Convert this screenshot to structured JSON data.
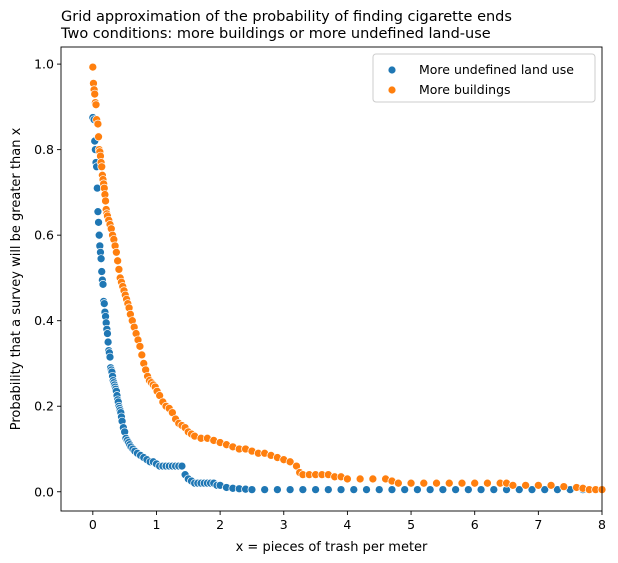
{
  "chart_data": {
    "type": "scatter",
    "title": "Grid approximation of the probability of finding cigarette ends",
    "subtitle": "Two conditions: more buildings or more undefined  land-use",
    "xlabel": "x = pieces of trash per meter",
    "ylabel": "Probability that a survey will be greater than x",
    "xlim": [
      -0.5,
      8
    ],
    "ylim": [
      -0.045,
      1.04
    ],
    "xticks": [
      0,
      1,
      2,
      3,
      4,
      5,
      6,
      7,
      8
    ],
    "yticks": [
      0.0,
      0.2,
      0.4,
      0.6,
      0.8,
      1.0
    ],
    "xtick_labels": [
      "0",
      "1",
      "2",
      "3",
      "4",
      "5",
      "6",
      "7",
      "8"
    ],
    "ytick_labels": [
      "0.0",
      "0.2",
      "0.4",
      "0.6",
      "0.8",
      "1.0"
    ],
    "grid": false,
    "legend_position": "top-right",
    "series": [
      {
        "name": "More undefined land use",
        "color": "#1f77b4",
        "x": [
          0.0,
          0.02,
          0.03,
          0.04,
          0.05,
          0.06,
          0.07,
          0.08,
          0.09,
          0.1,
          0.11,
          0.12,
          0.13,
          0.14,
          0.15,
          0.16,
          0.17,
          0.18,
          0.19,
          0.2,
          0.21,
          0.22,
          0.23,
          0.24,
          0.25,
          0.26,
          0.27,
          0.28,
          0.29,
          0.3,
          0.31,
          0.32,
          0.33,
          0.34,
          0.35,
          0.36,
          0.37,
          0.38,
          0.39,
          0.4,
          0.41,
          0.42,
          0.43,
          0.44,
          0.45,
          0.46,
          0.48,
          0.5,
          0.52,
          0.54,
          0.56,
          0.58,
          0.6,
          0.63,
          0.66,
          0.7,
          0.75,
          0.8,
          0.85,
          0.9,
          0.95,
          1.0,
          1.05,
          1.1,
          1.15,
          1.2,
          1.25,
          1.3,
          1.35,
          1.4,
          1.45,
          1.5,
          1.55,
          1.6,
          1.65,
          1.7,
          1.75,
          1.8,
          1.85,
          1.9,
          1.95,
          2.0,
          2.1,
          2.2,
          2.3,
          2.4,
          2.5,
          2.7,
          2.9,
          3.1,
          3.3,
          3.5,
          3.7,
          3.9,
          4.1,
          4.3,
          4.5,
          4.7,
          4.9,
          5.1,
          5.3,
          5.5,
          5.7,
          5.9,
          6.1,
          6.3,
          6.5,
          6.7,
          6.9,
          7.1,
          7.3,
          7.5,
          7.7
        ],
        "y": [
          0.875,
          0.87,
          0.82,
          0.8,
          0.77,
          0.76,
          0.71,
          0.655,
          0.63,
          0.6,
          0.575,
          0.56,
          0.545,
          0.515,
          0.495,
          0.485,
          0.445,
          0.44,
          0.42,
          0.41,
          0.395,
          0.38,
          0.37,
          0.35,
          0.33,
          0.325,
          0.315,
          0.29,
          0.285,
          0.28,
          0.27,
          0.26,
          0.255,
          0.25,
          0.245,
          0.24,
          0.235,
          0.225,
          0.215,
          0.21,
          0.2,
          0.195,
          0.19,
          0.185,
          0.175,
          0.165,
          0.15,
          0.14,
          0.125,
          0.12,
          0.115,
          0.11,
          0.105,
          0.1,
          0.095,
          0.09,
          0.085,
          0.08,
          0.075,
          0.07,
          0.07,
          0.065,
          0.06,
          0.06,
          0.06,
          0.06,
          0.06,
          0.06,
          0.06,
          0.06,
          0.04,
          0.03,
          0.025,
          0.02,
          0.02,
          0.02,
          0.02,
          0.02,
          0.02,
          0.02,
          0.015,
          0.015,
          0.01,
          0.008,
          0.007,
          0.006,
          0.005,
          0.005,
          0.005,
          0.005,
          0.005,
          0.005,
          0.005,
          0.005,
          0.005,
          0.005,
          0.005,
          0.005,
          0.005,
          0.005,
          0.005,
          0.005,
          0.005,
          0.005,
          0.005,
          0.005,
          0.005,
          0.005,
          0.005,
          0.005,
          0.005,
          0.005,
          0.005
        ]
      },
      {
        "name": "More buildings",
        "color": "#ff7f0e",
        "x": [
          0.0,
          0.01,
          0.02,
          0.03,
          0.04,
          0.05,
          0.06,
          0.08,
          0.09,
          0.1,
          0.11,
          0.12,
          0.13,
          0.14,
          0.15,
          0.16,
          0.17,
          0.18,
          0.19,
          0.2,
          0.21,
          0.22,
          0.23,
          0.25,
          0.27,
          0.29,
          0.31,
          0.33,
          0.35,
          0.37,
          0.39,
          0.41,
          0.43,
          0.45,
          0.47,
          0.49,
          0.51,
          0.53,
          0.55,
          0.57,
          0.59,
          0.62,
          0.65,
          0.68,
          0.71,
          0.74,
          0.77,
          0.8,
          0.83,
          0.86,
          0.89,
          0.92,
          0.95,
          0.98,
          1.01,
          1.05,
          1.1,
          1.15,
          1.2,
          1.25,
          1.3,
          1.35,
          1.4,
          1.45,
          1.5,
          1.55,
          1.6,
          1.7,
          1.8,
          1.9,
          2.0,
          2.1,
          2.2,
          2.3,
          2.4,
          2.5,
          2.6,
          2.7,
          2.8,
          2.9,
          3.0,
          3.1,
          3.2,
          3.25,
          3.3,
          3.4,
          3.5,
          3.6,
          3.7,
          3.8,
          3.9,
          4.0,
          4.2,
          4.4,
          4.6,
          4.7,
          4.8,
          5.0,
          5.2,
          5.4,
          5.6,
          5.8,
          6.0,
          6.2,
          6.4,
          6.5,
          6.6,
          6.8,
          7.0,
          7.2,
          7.4,
          7.6,
          7.7,
          7.8,
          7.9,
          8.0
        ],
        "y": [
          0.993,
          0.955,
          0.94,
          0.93,
          0.91,
          0.905,
          0.87,
          0.86,
          0.83,
          0.8,
          0.795,
          0.785,
          0.77,
          0.76,
          0.74,
          0.73,
          0.72,
          0.71,
          0.695,
          0.68,
          0.66,
          0.65,
          0.645,
          0.635,
          0.625,
          0.615,
          0.6,
          0.59,
          0.575,
          0.56,
          0.54,
          0.52,
          0.5,
          0.49,
          0.48,
          0.47,
          0.46,
          0.45,
          0.44,
          0.43,
          0.415,
          0.4,
          0.385,
          0.37,
          0.355,
          0.34,
          0.32,
          0.3,
          0.285,
          0.27,
          0.26,
          0.255,
          0.25,
          0.245,
          0.235,
          0.225,
          0.21,
          0.2,
          0.195,
          0.185,
          0.17,
          0.16,
          0.155,
          0.15,
          0.14,
          0.135,
          0.13,
          0.125,
          0.125,
          0.12,
          0.115,
          0.11,
          0.105,
          0.1,
          0.1,
          0.095,
          0.09,
          0.09,
          0.085,
          0.08,
          0.075,
          0.07,
          0.06,
          0.045,
          0.04,
          0.04,
          0.04,
          0.04,
          0.04,
          0.035,
          0.035,
          0.03,
          0.03,
          0.03,
          0.03,
          0.025,
          0.02,
          0.02,
          0.02,
          0.02,
          0.02,
          0.02,
          0.02,
          0.02,
          0.02,
          0.02,
          0.015,
          0.015,
          0.015,
          0.015,
          0.012,
          0.01,
          0.008,
          0.005,
          0.005,
          0.005
        ]
      }
    ]
  }
}
